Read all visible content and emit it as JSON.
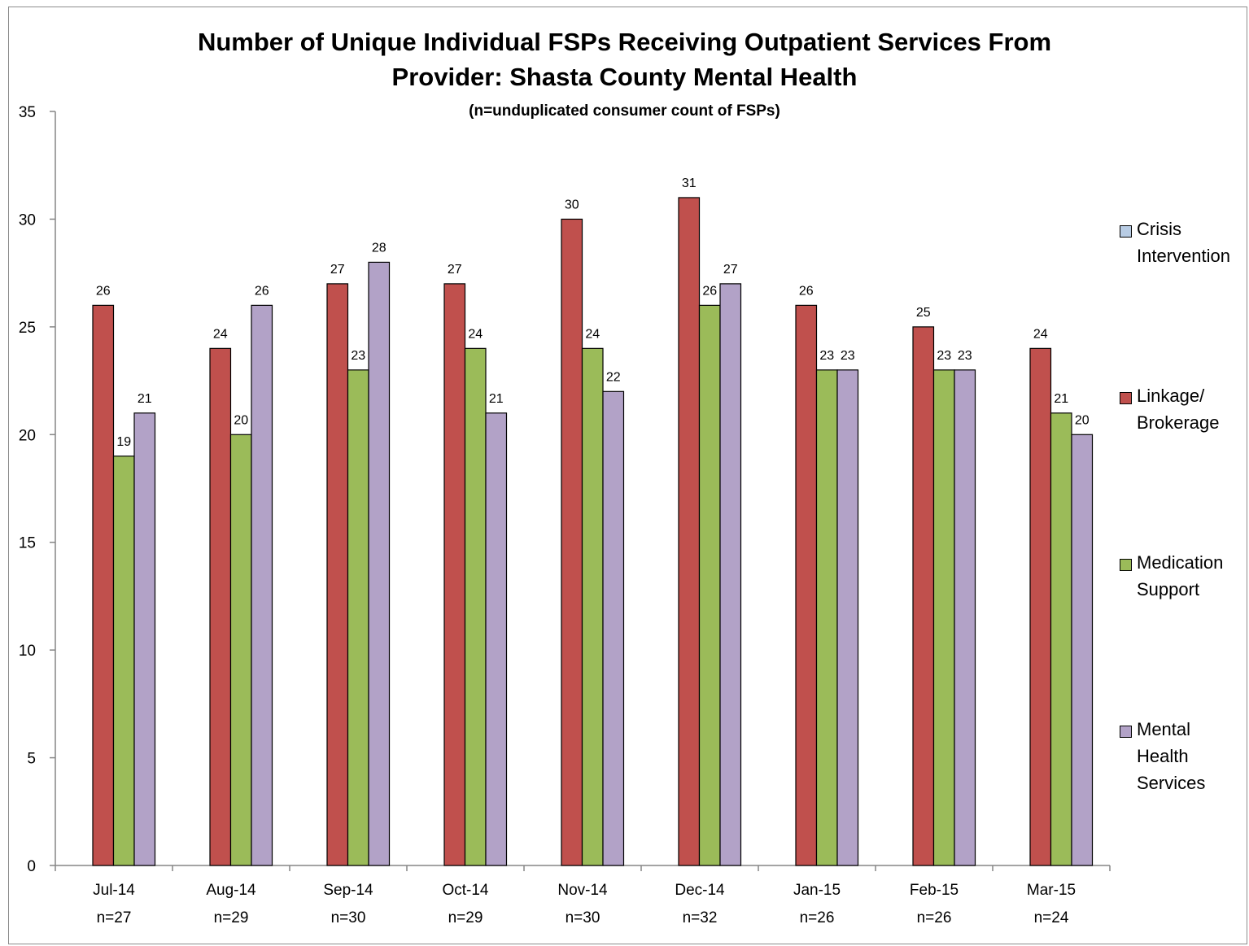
{
  "chart_data": {
    "type": "bar",
    "title": "Number of Unique Individual FSPs Receiving Outpatient Services From Provider: Shasta County Mental Health",
    "title_lines": [
      "Number of Unique Individual FSPs Receiving Outpatient Services From",
      "Provider: Shasta County Mental Health"
    ],
    "subtitle": "(n=unduplicated consumer count of FSPs)",
    "categories": [
      "Jul-14",
      "Aug-14",
      "Sep-14",
      "Oct-14",
      "Nov-14",
      "Dec-14",
      "Jan-15",
      "Feb-15",
      "Mar-15"
    ],
    "category_n": [
      "n=27",
      "n=29",
      "n=30",
      "n=29",
      "n=30",
      "n=32",
      "n=26",
      "n=26",
      "n=24"
    ],
    "series": [
      {
        "name": "Crisis Intervention",
        "legend_lines": [
          "Crisis",
          "Intervention"
        ],
        "color": "#b8cce4",
        "values": [
          0,
          0,
          0,
          0,
          0,
          0,
          0,
          0,
          0
        ]
      },
      {
        "name": "Linkage/ Brokerage",
        "legend_lines": [
          "Linkage/",
          "Brokerage"
        ],
        "color": "#c0504d",
        "values": [
          26,
          24,
          27,
          27,
          30,
          31,
          26,
          25,
          24
        ]
      },
      {
        "name": "Medication Support",
        "legend_lines": [
          "Medication",
          "Support"
        ],
        "color": "#9bbb59",
        "values": [
          19,
          20,
          23,
          24,
          24,
          26,
          23,
          23,
          21
        ]
      },
      {
        "name": "Mental Health Services",
        "legend_lines": [
          "Mental",
          "Health",
          "Services"
        ],
        "color": "#b2a2c7",
        "values": [
          21,
          26,
          28,
          21,
          22,
          27,
          23,
          23,
          20
        ]
      }
    ],
    "ylim": [
      0,
      35
    ],
    "yticks": [
      0,
      5,
      10,
      15,
      20,
      25,
      30,
      35
    ],
    "grid": false,
    "legend_position": "right",
    "xlabel": "",
    "ylabel": ""
  }
}
